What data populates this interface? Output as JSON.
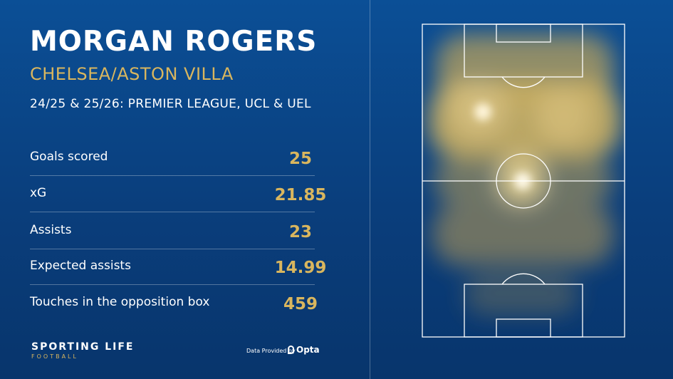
{
  "player": {
    "name": "MORGAN ROGERS",
    "clubs": "CHELSEA/ASTON VILLA",
    "competitions": "24/25 & 25/26: PREMIER LEAGUE, UCL & UEL"
  },
  "stats": [
    {
      "label": "Goals scored",
      "value": "25"
    },
    {
      "label": "xG",
      "value": "21.85"
    },
    {
      "label": "Assists",
      "value": "23"
    },
    {
      "label": "Expected assists",
      "value": "14.99"
    },
    {
      "label": "Touches in the opposition box",
      "value": "459"
    }
  ],
  "branding": {
    "line1": "SPORTING LIFE",
    "line2": "FOOTBALL",
    "provided_by": "Data Provided by",
    "provider": "Opta"
  },
  "colors": {
    "background": "#0a4688",
    "accent_gold": "#d9b65e",
    "heat": "#f2c95a"
  },
  "icons": [
    "opta-logo-icon"
  ]
}
